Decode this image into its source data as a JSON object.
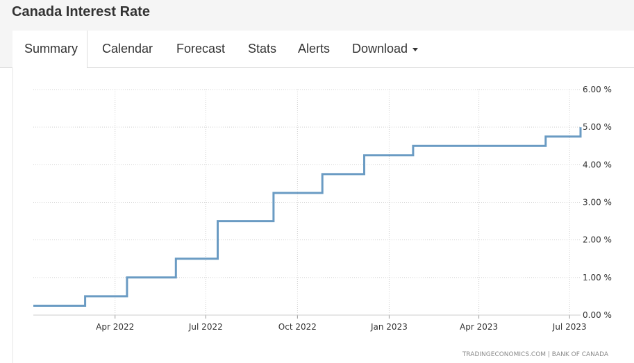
{
  "header": {
    "title": "Canada Interest Rate"
  },
  "tabs": [
    {
      "label": "Summary",
      "active": true
    },
    {
      "label": "Calendar",
      "active": false
    },
    {
      "label": "Forecast",
      "active": false
    },
    {
      "label": "Stats",
      "active": false
    },
    {
      "label": "Alerts",
      "active": false
    },
    {
      "label": "Download",
      "active": false
    }
  ],
  "colors": {
    "line": "#6a9bc3",
    "grid": "#d0d0d0",
    "header_bg": "#f5f5f5"
  },
  "chart_data": {
    "type": "line",
    "title": "",
    "xlabel": "",
    "ylabel": "",
    "x_range": [
      "2022-01-09",
      "2023-07-12"
    ],
    "ylim": [
      0,
      6
    ],
    "y_ticks": [
      0,
      1,
      2,
      3,
      4,
      5,
      6
    ],
    "y_tick_labels": [
      "0.00 %",
      "1.00 %",
      "2.00 %",
      "3.00 %",
      "4.00 %",
      "5.00 %",
      "6.00 %"
    ],
    "x_tick_labels": [
      {
        "date": "2022-04-01",
        "label": "Apr 2022"
      },
      {
        "date": "2022-07-01",
        "label": "Jul 2022"
      },
      {
        "date": "2022-10-01",
        "label": "Oct 2022"
      },
      {
        "date": "2023-01-01",
        "label": "Jan 2023"
      },
      {
        "date": "2023-04-01",
        "label": "Apr 2023"
      },
      {
        "date": "2023-07-01",
        "label": "Jul 2023"
      }
    ],
    "grid": true,
    "series": [
      {
        "step": true,
        "points": [
          {
            "x": "2022-01-09",
            "y": 0.25
          },
          {
            "x": "2022-03-02",
            "y": 0.5
          },
          {
            "x": "2022-04-13",
            "y": 1.0
          },
          {
            "x": "2022-06-01",
            "y": 1.5
          },
          {
            "x": "2022-07-13",
            "y": 2.5
          },
          {
            "x": "2022-09-07",
            "y": 3.25
          },
          {
            "x": "2022-10-26",
            "y": 3.75
          },
          {
            "x": "2022-12-07",
            "y": 4.25
          },
          {
            "x": "2023-01-25",
            "y": 4.5
          },
          {
            "x": "2023-06-07",
            "y": 4.75
          },
          {
            "x": "2023-07-12",
            "y": 5.0
          }
        ]
      }
    ],
    "source": "TRADINGECONOMICS.COM  |  BANK OF CANADA"
  }
}
